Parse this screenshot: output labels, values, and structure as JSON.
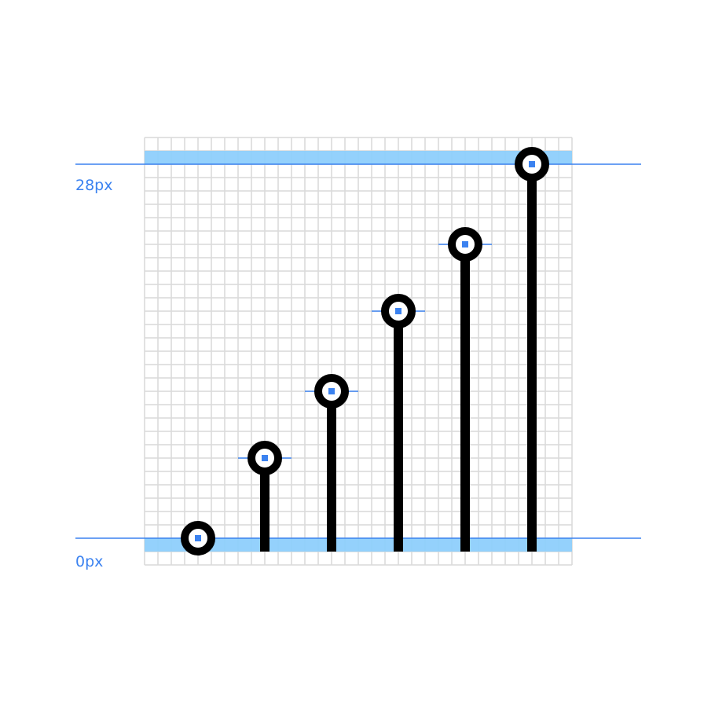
{
  "colors": {
    "background": "#ffffff",
    "grid": "#d9d9d9",
    "band_fill": "#8ecffc",
    "guide": "#3b82f0",
    "label": "#3b82f0",
    "mark": "#000000",
    "center_dot": "#3b82f0"
  },
  "scale": {
    "min_label": "0px",
    "max_label": "28px",
    "min": 0,
    "max": 28,
    "grid_columns": 32,
    "grid_rows": 32
  },
  "chart_data": {
    "type": "lollipop",
    "units": "px",
    "ylim": [
      0,
      28
    ],
    "grid": true,
    "x": [
      4,
      9,
      14,
      19,
      24,
      29
    ],
    "values": [
      0,
      6,
      11,
      17,
      22,
      28
    ]
  }
}
